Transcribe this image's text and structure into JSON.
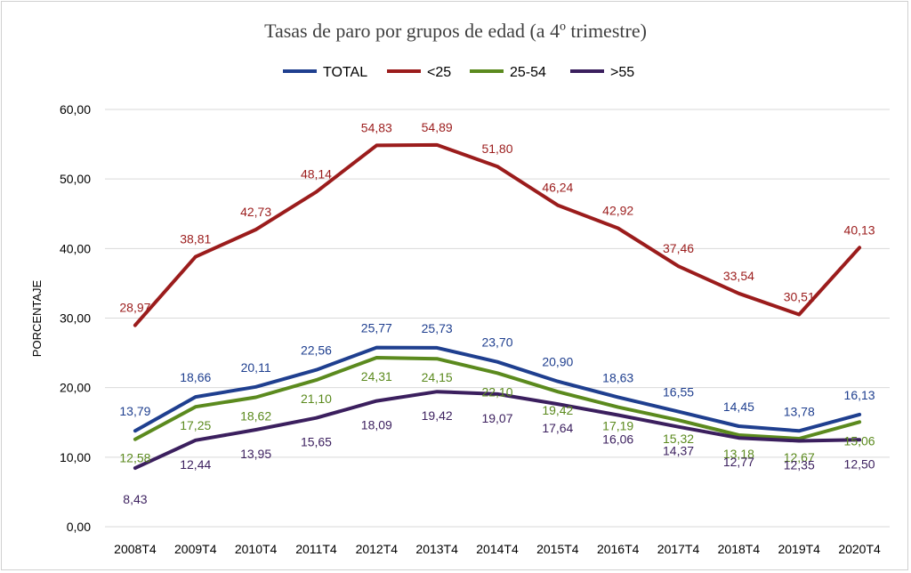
{
  "chart_data": {
    "type": "line",
    "title": "Tasas de paro por grupos de edad (a 4º trimestre)",
    "ylabel": "PORCENTAJE",
    "xlabel": "",
    "ylim": [
      0,
      60
    ],
    "yticks": [
      "0,00",
      "10,00",
      "20,00",
      "30,00",
      "40,00",
      "50,00",
      "60,00"
    ],
    "grid": true,
    "legend_position": "top",
    "categories": [
      "2008T4",
      "2009T4",
      "2010T4",
      "2011T4",
      "2012T4",
      "2013T4",
      "2014T4",
      "2015T4",
      "2016T4",
      "2017T4",
      "2018T4",
      "2019T4",
      "2020T4"
    ],
    "series": [
      {
        "name": "TOTAL",
        "color": "#1f3f8f",
        "values": [
          13.79,
          18.66,
          20.11,
          22.56,
          25.77,
          25.73,
          23.7,
          20.9,
          18.63,
          16.55,
          14.45,
          13.78,
          16.13
        ],
        "labels": [
          "13,79",
          "18,66",
          "20,11",
          "22,56",
          "25,77",
          "25,73",
          "23,70",
          "20,90",
          "18,63",
          "16,55",
          "14,45",
          "13,78",
          "16,13"
        ]
      },
      {
        "name": "<25",
        "color": "#9b1c1c",
        "values": [
          28.97,
          38.81,
          42.73,
          48.14,
          54.83,
          54.89,
          51.8,
          46.24,
          42.92,
          37.46,
          33.54,
          30.51,
          40.13
        ],
        "labels": [
          "28,97",
          "38,81",
          "42,73",
          "48,14",
          "54,83",
          "54,89",
          "51,80",
          "46,24",
          "42,92",
          "37,46",
          "33,54",
          "30,51",
          "40,13"
        ]
      },
      {
        "name": "25-54",
        "color": "#5b8a1e",
        "values": [
          12.58,
          17.25,
          18.62,
          21.1,
          24.31,
          24.15,
          22.1,
          19.42,
          17.19,
          15.32,
          13.18,
          12.67,
          15.06
        ],
        "labels": [
          "12,58",
          "17,25",
          "18,62",
          "21,10",
          "24,31",
          "24,15",
          "22,10",
          "19,42",
          "17,19",
          "15,32",
          "13,18",
          "12,67",
          "15,06"
        ]
      },
      {
        "name": ">55",
        "color": "#3b1f5e",
        "values": [
          8.43,
          12.44,
          13.95,
          15.65,
          18.09,
          19.42,
          19.07,
          17.64,
          16.06,
          14.37,
          12.77,
          12.35,
          12.5
        ],
        "labels": [
          "8,43",
          "12,44",
          "13,95",
          "15,65",
          "18,09",
          "19,42",
          "19,07",
          "17,64",
          "16,06",
          "14,37",
          "12,77",
          "12,35",
          "12,50"
        ]
      }
    ]
  }
}
